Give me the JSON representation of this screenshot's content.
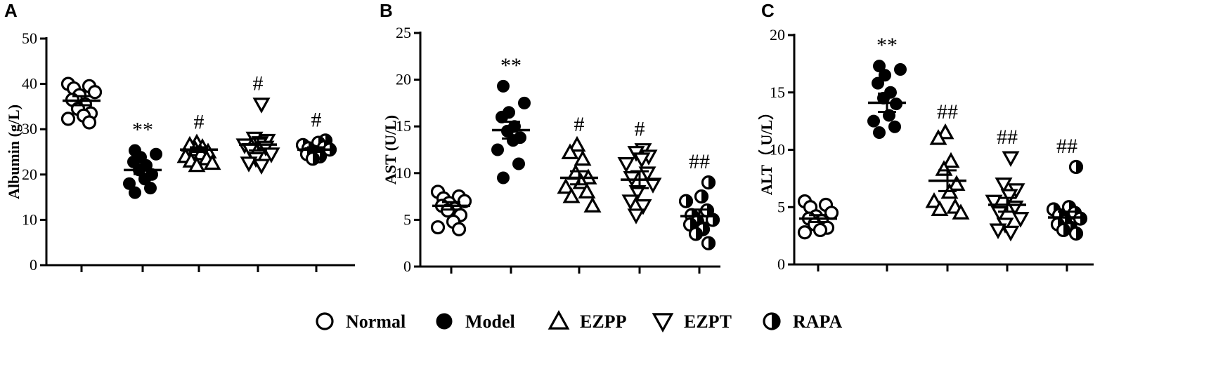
{
  "chart_data": [
    {
      "type": "scatter",
      "panel": "A",
      "ylabel": "Albumin (g/L)",
      "ylim": [
        0,
        50
      ],
      "yticks": [
        0,
        10,
        20,
        30,
        40,
        50
      ],
      "groups": [
        {
          "name": "Normal",
          "values": [
            40,
            39.5,
            39,
            38.2,
            37.5,
            36.5,
            35.5,
            34.5,
            33.5,
            33,
            32.3,
            31.5
          ],
          "mean": 36.3,
          "sem": 1.0,
          "sig": ""
        },
        {
          "name": "Model",
          "values": [
            25.3,
            24.5,
            23.8,
            22.8,
            22,
            21,
            20,
            19,
            18,
            17,
            16
          ],
          "mean": 21.0,
          "sem": 0.9,
          "sig": "**"
        },
        {
          "name": "EZPP",
          "values": [
            27,
            26.5,
            26,
            25.5,
            25,
            24.6,
            24,
            23.5,
            23,
            22.5,
            22
          ],
          "mean": 25.5,
          "sem": 0.5,
          "sig": "#"
        },
        {
          "name": "EZPT",
          "values": [
            35.5,
            28,
            27.5,
            27,
            26.5,
            26,
            25.5,
            24.5,
            23.5,
            22.5,
            22
          ],
          "mean": 26.6,
          "sem": 1.3,
          "sig": "#"
        },
        {
          "name": "RAPA",
          "values": [
            27.5,
            27,
            26.5,
            26,
            25.8,
            25.5,
            25,
            24.5,
            24,
            23.5
          ],
          "mean": 25.5,
          "sem": 0.5,
          "sig": "#"
        }
      ]
    },
    {
      "type": "scatter",
      "panel": "B",
      "ylabel": "AST (U/L)",
      "ylim": [
        0,
        25
      ],
      "yticks": [
        0,
        5,
        10,
        15,
        20,
        25
      ],
      "groups": [
        {
          "name": "Normal",
          "values": [
            8,
            7.5,
            7.3,
            7,
            6.8,
            6.5,
            6.2,
            6,
            5.5,
            4.8,
            4.2,
            4
          ],
          "mean": 6.5,
          "sem": 0.4,
          "sig": ""
        },
        {
          "name": "Model",
          "values": [
            19.3,
            17.5,
            16.5,
            16,
            15,
            14.5,
            13.8,
            13.5,
            12.5,
            11,
            9.5
          ],
          "mean": 14.6,
          "sem": 0.9,
          "sig": "**"
        },
        {
          "name": "EZPP",
          "values": [
            13,
            12.2,
            11.5,
            10,
            9.5,
            9,
            8.5,
            8,
            7.5,
            6.5
          ],
          "mean": 9.5,
          "sem": 0.7,
          "sig": "#"
        },
        {
          "name": "EZPT",
          "values": [
            12.5,
            12.2,
            11.8,
            11.5,
            11,
            10,
            9.5,
            8.8,
            8,
            7,
            6.5,
            5.5
          ],
          "mean": 9.3,
          "sem": 0.9,
          "sig": "#"
        },
        {
          "name": "RAPA",
          "values": [
            9,
            7.5,
            7,
            6,
            5.5,
            5,
            4.8,
            4.5,
            4,
            3.5,
            2.5
          ],
          "mean": 5.4,
          "sem": 0.7,
          "sig": "##"
        }
      ]
    },
    {
      "type": "scatter",
      "panel": "C",
      "ylabel": "ALT（ U/L）",
      "ylim": [
        0,
        20
      ],
      "yticks": [
        0,
        5,
        10,
        15,
        20
      ],
      "groups": [
        {
          "name": "Normal",
          "values": [
            5.5,
            5.2,
            5,
            4.5,
            4.2,
            4,
            3.8,
            3.5,
            3.2,
            3,
            2.8
          ],
          "mean": 4.0,
          "sem": 0.3,
          "sig": ""
        },
        {
          "name": "Model",
          "values": [
            17.3,
            17,
            16.5,
            15.8,
            15,
            14.5,
            14,
            13,
            12.5,
            12,
            11.5
          ],
          "mean": 14.1,
          "sem": 0.8,
          "sig": "**"
        },
        {
          "name": "EZPP",
          "values": [
            11.5,
            11,
            9,
            8.3,
            7,
            6.3,
            5.5,
            5,
            4.8,
            4.5
          ],
          "mean": 7.3,
          "sem": 0.9,
          "sig": "##"
        },
        {
          "name": "EZPT",
          "values": [
            9.3,
            7,
            6.5,
            6,
            5.5,
            5,
            4.5,
            4,
            3.5,
            3,
            2.8
          ],
          "mean": 5.2,
          "sem": 0.6,
          "sig": "##"
        },
        {
          "name": "RAPA",
          "values": [
            8.5,
            5,
            4.8,
            4.5,
            4.3,
            4,
            3.8,
            3.5,
            3.2,
            3,
            2.7
          ],
          "mean": 4.1,
          "sem": 0.5,
          "sig": "##"
        }
      ]
    }
  ],
  "legend": {
    "items": [
      {
        "label": "Normal",
        "marker": "open-circle"
      },
      {
        "label": "Model",
        "marker": "filled-circle"
      },
      {
        "label": "EZPP",
        "marker": "up-triangle"
      },
      {
        "label": "EZPT",
        "marker": "down-triangle"
      },
      {
        "label": "RAPA",
        "marker": "half-circle"
      }
    ]
  }
}
